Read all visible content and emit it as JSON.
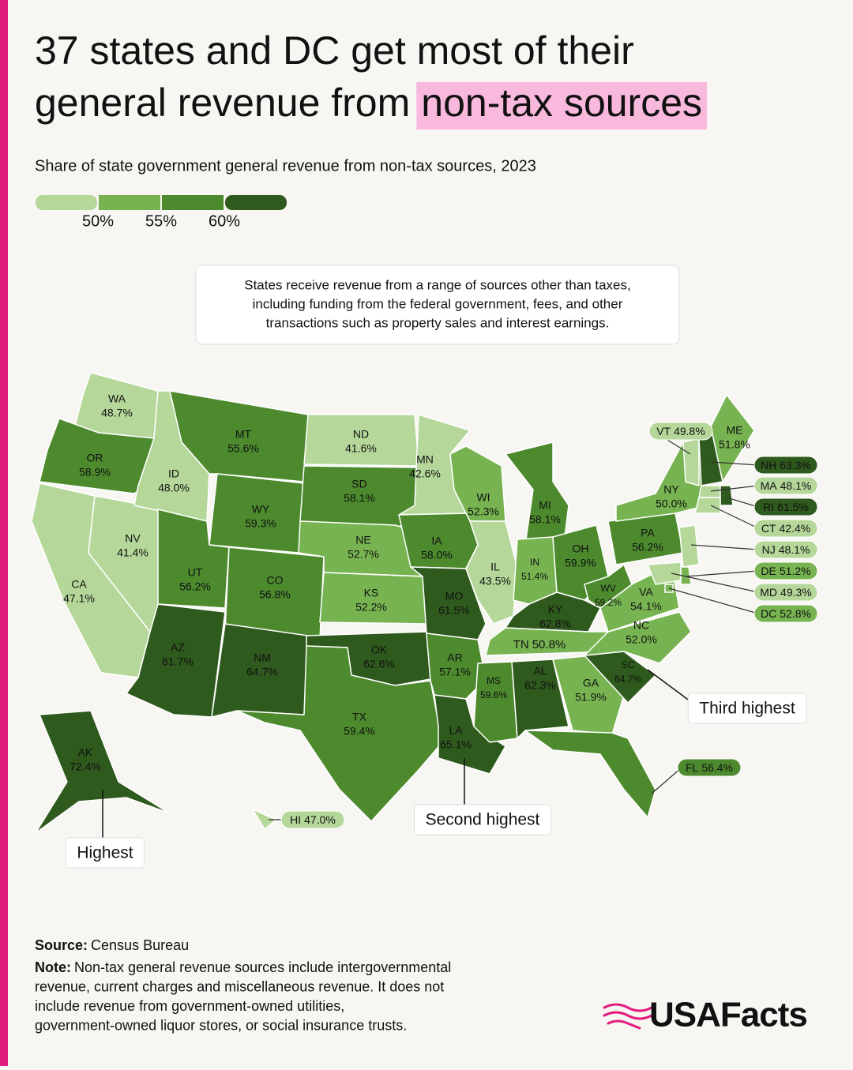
{
  "chart_data": {
    "type": "choropleth",
    "title_lines": [
      "37 states and DC get most of their",
      "general revenue from"
    ],
    "title_highlight": "non-tax sources",
    "subtitle": "Share of state government general revenue from non-tax sources, 2023",
    "callout": [
      "States receive revenue from a range of sources other than taxes,",
      "including funding from the federal government, fees, and other",
      "transactions such as property sales and interest earnings."
    ],
    "legend": {
      "colors": [
        "#b5d89a",
        "#77b451",
        "#4d8a2e",
        "#2f5a1d"
      ],
      "ticks": [
        {
          "value": 50,
          "label": "50%"
        },
        {
          "value": 55,
          "label": "55%"
        },
        {
          "value": 60,
          "label": "60%"
        }
      ]
    },
    "categories": [
      "WA",
      "OR",
      "CA",
      "NV",
      "ID",
      "MT",
      "WY",
      "UT",
      "CO",
      "AZ",
      "NM",
      "ND",
      "SD",
      "NE",
      "KS",
      "OK",
      "TX",
      "MN",
      "IA",
      "MO",
      "AR",
      "LA",
      "WI",
      "IL",
      "MI",
      "IN",
      "OH",
      "KY",
      "TN",
      "MS",
      "AL",
      "GA",
      "FL",
      "SC",
      "NC",
      "VA",
      "WV",
      "PA",
      "NY",
      "VT",
      "NH",
      "ME",
      "MA",
      "RI",
      "CT",
      "NJ",
      "DE",
      "MD",
      "DC",
      "AK",
      "HI"
    ],
    "values": [
      48.7,
      58.9,
      47.1,
      41.4,
      48.0,
      55.6,
      59.3,
      56.2,
      56.8,
      61.7,
      64.7,
      41.6,
      58.1,
      52.7,
      52.2,
      62.6,
      59.4,
      42.6,
      58.0,
      61.5,
      57.1,
      65.1,
      52.3,
      43.5,
      58.1,
      51.4,
      59.9,
      62.8,
      50.8,
      59.6,
      62.3,
      51.9,
      56.4,
      64.7,
      52.0,
      54.1,
      59.2,
      56.2,
      50.0,
      49.8,
      63.3,
      51.8,
      48.1,
      61.5,
      42.4,
      48.1,
      51.2,
      49.3,
      52.8,
      72.4,
      47.0
    ],
    "value_labels": [
      "48.7%",
      "58.9%",
      "47.1%",
      "41.4%",
      "48.0%",
      "55.6%",
      "59.3%",
      "56.2%",
      "56.8%",
      "61.7%",
      "64.7%",
      "41.6%",
      "58.1%",
      "52.7%",
      "52.2%",
      "62.6%",
      "59.4%",
      "42.6%",
      "58.0%",
      "61.5%",
      "57.1%",
      "65.1%",
      "52.3%",
      "43.5%",
      "58.1%",
      "51.4%",
      "59.9%",
      "62.8%",
      "50.8%",
      "59.6%",
      "62.3%",
      "51.9%",
      "56.4%",
      "64.7%",
      "52.0%",
      "54.1%",
      "59.2%",
      "56.2%",
      "50.0%",
      "49.8%",
      "63.3%",
      "51.8%",
      "48.1%",
      "61.5%",
      "42.4%",
      "48.1%",
      "51.2%",
      "49.3%",
      "52.8%",
      "72.4%",
      "47.0%"
    ],
    "annotations": [
      "Highest",
      "Second highest",
      "Third highest"
    ],
    "source_label": "Source:",
    "source": "Census Bureau",
    "note_label": "Note:",
    "note_lines": [
      "Non-tax general revenue sources include intergovernmental",
      "revenue, current charges and miscellaneous revenue. It does not",
      "include revenue from government-owned utilities,",
      "government-owned liquor stores, or social insurance trusts."
    ],
    "logo": "USAFacts"
  }
}
